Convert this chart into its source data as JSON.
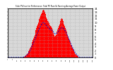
{
  "title": "Solar PV/Inverter Performance  Total PV Panel & Running Average Power Output",
  "ylim": [
    0,
    14
  ],
  "bar_color": "#ff0000",
  "avg_color": "#0000cc",
  "bg_color": "#ffffff",
  "plot_bg": "#d8d8d8",
  "grid_color": "#aaaaaa",
  "num_bars": 144,
  "bar_values": [
    0.0,
    0.0,
    0.0,
    0.0,
    0.0,
    0.0,
    0.0,
    0.0,
    0.0,
    0.0,
    0.0,
    0.0,
    0.0,
    0.0,
    0.0,
    0.0,
    0.0,
    0.0,
    0.0,
    0.0,
    0.0,
    0.0,
    0.0,
    0.0,
    0.05,
    0.1,
    0.2,
    0.3,
    0.4,
    0.5,
    0.6,
    0.8,
    1.0,
    1.2,
    1.5,
    1.8,
    2.2,
    2.6,
    3.0,
    3.5,
    4.0,
    4.5,
    5.0,
    5.5,
    6.0,
    6.5,
    7.2,
    7.8,
    8.5,
    9.0,
    9.5,
    10.0,
    10.5,
    11.0,
    11.5,
    12.0,
    12.5,
    12.8,
    13.2,
    13.5,
    13.6,
    13.4,
    13.0,
    12.5,
    12.0,
    11.5,
    11.0,
    10.5,
    10.2,
    9.8,
    9.5,
    9.2,
    9.0,
    8.8,
    8.5,
    8.0,
    7.5,
    7.0,
    6.5,
    6.0,
    6.2,
    6.5,
    7.0,
    7.5,
    8.0,
    8.5,
    9.0,
    9.5,
    10.0,
    10.5,
    11.0,
    11.3,
    11.0,
    10.5,
    10.0,
    9.5,
    9.0,
    8.5,
    8.0,
    7.5,
    7.0,
    6.5,
    6.0,
    5.5,
    5.0,
    4.5,
    4.0,
    3.6,
    3.2,
    2.8,
    2.4,
    2.0,
    1.7,
    1.4,
    1.1,
    0.9,
    0.7,
    0.5,
    0.3,
    0.2,
    0.1,
    0.05,
    0.0,
    0.0,
    0.0,
    0.0,
    0.0,
    0.0,
    0.0,
    0.0,
    0.0,
    0.0,
    0.0,
    0.0,
    0.0,
    0.0,
    0.0,
    0.0,
    0.0,
    0.0,
    0.0,
    0.0,
    0.0,
    0.0
  ],
  "avg_values": [
    0.0,
    0.0,
    0.0,
    0.0,
    0.0,
    0.0,
    0.0,
    0.0,
    0.0,
    0.0,
    0.0,
    0.0,
    0.0,
    0.0,
    0.0,
    0.0,
    0.0,
    0.0,
    0.0,
    0.0,
    0.0,
    0.0,
    0.0,
    0.0,
    0.02,
    0.05,
    0.1,
    0.15,
    0.2,
    0.3,
    0.4,
    0.5,
    0.7,
    0.9,
    1.1,
    1.3,
    1.6,
    1.9,
    2.2,
    2.6,
    3.0,
    3.4,
    3.8,
    4.2,
    4.6,
    5.0,
    5.4,
    5.8,
    6.2,
    6.7,
    7.1,
    7.5,
    7.9,
    8.3,
    8.6,
    8.9,
    9.2,
    9.5,
    9.7,
    9.9,
    10.0,
    9.9,
    9.7,
    9.5,
    9.3,
    9.1,
    8.9,
    8.7,
    8.5,
    8.3,
    8.2,
    8.1,
    8.0,
    7.9,
    7.8,
    7.6,
    7.4,
    7.2,
    7.0,
    6.8,
    6.7,
    6.7,
    6.8,
    7.0,
    7.2,
    7.4,
    7.6,
    7.8,
    8.0,
    8.2,
    8.4,
    8.5,
    8.5,
    8.4,
    8.2,
    8.0,
    7.8,
    7.5,
    7.2,
    6.9,
    6.5,
    6.1,
    5.7,
    5.3,
    4.9,
    4.5,
    4.1,
    3.7,
    3.3,
    2.9,
    2.5,
    2.2,
    1.9,
    1.6,
    1.3,
    1.1,
    0.9,
    0.7,
    0.5,
    0.3,
    0.2,
    0.1,
    0.0,
    0.0,
    0.0,
    0.0,
    0.0,
    0.0,
    0.0,
    0.0,
    0.0,
    0.0,
    0.0,
    0.0,
    0.0,
    0.0,
    0.0,
    0.0,
    0.0,
    0.0,
    0.0,
    0.0,
    0.0,
    0.0
  ],
  "figsize": [
    1.6,
    1.0
  ],
  "dpi": 100
}
